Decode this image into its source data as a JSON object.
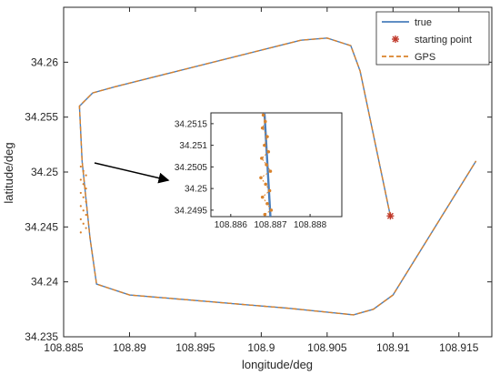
{
  "chart_data": {
    "type": "line",
    "xlabel": "longitude/deg",
    "ylabel": "latitude/deg",
    "xlim": [
      108.885,
      108.9175
    ],
    "ylim": [
      34.235,
      34.265
    ],
    "xticks": [
      "108.885",
      "108.89",
      "108.895",
      "108.9",
      "108.905",
      "108.91",
      "108.915"
    ],
    "yticks": [
      "34.235",
      "34.24",
      "34.245",
      "34.25",
      "34.255",
      "34.26"
    ],
    "grid": false,
    "legend": {
      "placement": "top-right",
      "entries": [
        {
          "label": "true",
          "color": "#4a7ebb",
          "style": "solid"
        },
        {
          "label": "starting point",
          "color": "#c0392b",
          "style": "asterisk"
        },
        {
          "label": "GPS",
          "color": "#d9822b",
          "style": "dashed"
        }
      ]
    },
    "series": [
      {
        "name": "true",
        "color": "#4a7ebb",
        "points": [
          [
            108.9098,
            34.246
          ],
          [
            108.9075,
            34.2592
          ],
          [
            108.9068,
            34.2615
          ],
          [
            108.905,
            34.2622
          ],
          [
            108.903,
            34.262
          ],
          [
            108.889,
            34.2578
          ],
          [
            108.8872,
            34.2572
          ],
          [
            108.8862,
            34.256
          ],
          [
            108.8864,
            34.251
          ],
          [
            108.887,
            34.244
          ],
          [
            108.8875,
            34.2398
          ],
          [
            108.89,
            34.2388
          ],
          [
            108.902,
            34.2376
          ],
          [
            108.907,
            34.237
          ],
          [
            108.9085,
            34.2375
          ],
          [
            108.91,
            34.2388
          ],
          [
            108.9163,
            34.251
          ]
        ]
      },
      {
        "name": "GPS",
        "color": "#d9822b",
        "points": [
          [
            108.9098,
            34.246
          ],
          [
            108.9075,
            34.2592
          ],
          [
            108.9068,
            34.2615
          ],
          [
            108.905,
            34.2622
          ],
          [
            108.903,
            34.262
          ],
          [
            108.889,
            34.2578
          ],
          [
            108.8872,
            34.2572
          ],
          [
            108.8862,
            34.256
          ],
          [
            108.8864,
            34.251
          ],
          [
            108.887,
            34.244
          ],
          [
            108.8875,
            34.2398
          ],
          [
            108.89,
            34.2388
          ],
          [
            108.902,
            34.2376
          ],
          [
            108.907,
            34.237
          ],
          [
            108.9085,
            34.2375
          ],
          [
            108.91,
            34.2388
          ],
          [
            108.9163,
            34.251
          ]
        ]
      }
    ],
    "starting_point": {
      "x": 108.9098,
      "y": 34.246,
      "color": "#c0392b"
    },
    "inset": {
      "xlim": [
        108.8855,
        108.8888
      ],
      "ylim": [
        34.24935,
        34.25175
      ],
      "xticks": [
        "108.886",
        "108.887",
        "108.888"
      ],
      "yticks": [
        "34.2495",
        "34.25",
        "34.2505",
        "34.251",
        "34.2515"
      ],
      "true_line": [
        [
          108.88685,
          34.25175
        ],
        [
          108.887,
          34.24935
        ]
      ],
      "gps_points": [
        [
          108.88682,
          34.2517
        ],
        [
          108.88687,
          34.25155
        ],
        [
          108.8868,
          34.2514
        ],
        [
          108.88692,
          34.2512
        ],
        [
          108.88685,
          34.251
        ],
        [
          108.88695,
          34.25085
        ],
        [
          108.88678,
          34.2507
        ],
        [
          108.8869,
          34.25055
        ],
        [
          108.887,
          34.2504
        ],
        [
          108.88676,
          34.25025
        ],
        [
          108.88688,
          34.2501
        ],
        [
          108.88698,
          34.24995
        ],
        [
          108.8868,
          34.2498
        ],
        [
          108.88692,
          34.24965
        ],
        [
          108.88702,
          34.2495
        ],
        [
          108.88686,
          34.2494
        ]
      ]
    }
  }
}
